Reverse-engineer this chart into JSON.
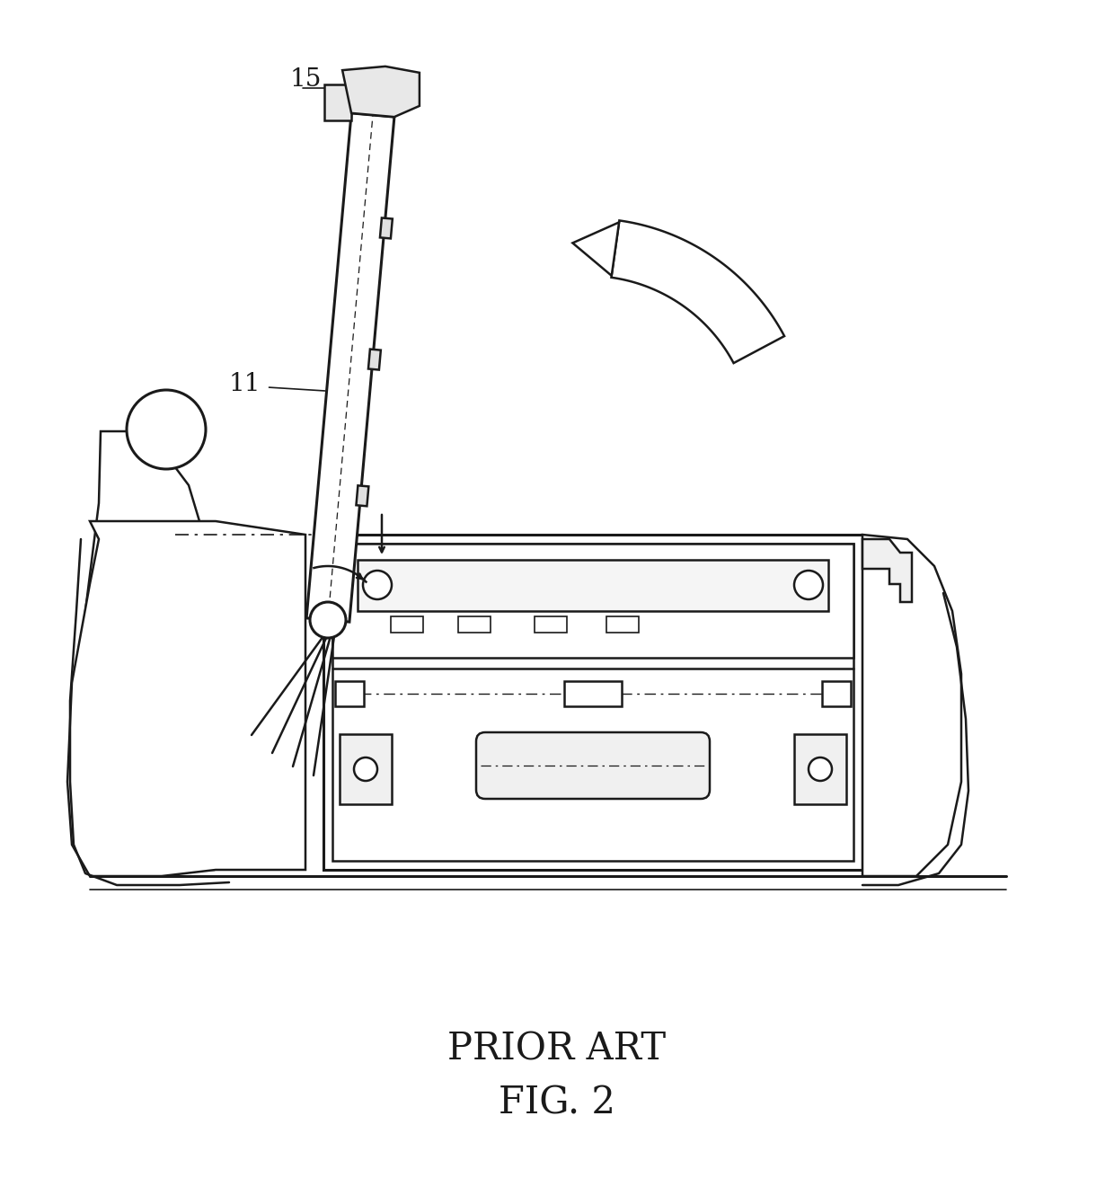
{
  "title_line1": "PRIOR ART",
  "title_line2": "FIG. 2",
  "label_15": "15",
  "label_11": "11",
  "bg_color": "#ffffff",
  "line_color": "#1a1a1a",
  "lw_main": 1.8,
  "lw_thin": 1.2,
  "lw_thick": 2.2,
  "fig_width": 12.4,
  "fig_height": 13.11,
  "dpi": 100
}
